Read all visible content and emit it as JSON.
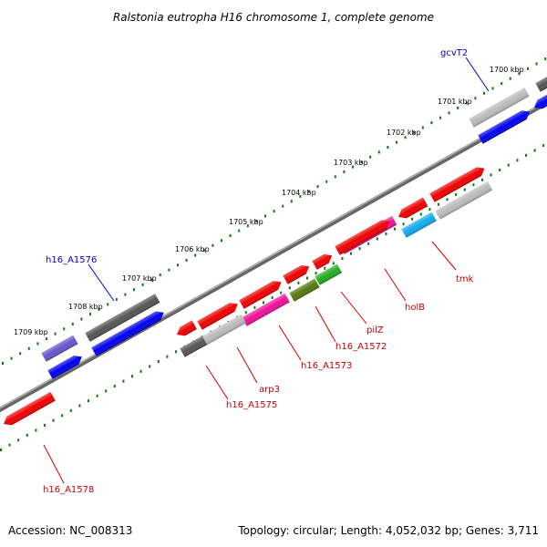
{
  "title": "Ralstonia eutropha H16 chromosome 1, complete genome",
  "accession": "Accession: NC_008313",
  "topology": "Topology: circular; Length: 4,052,032 bp; Genes: 3,711",
  "kbp_ticks": [
    "1700 kbp",
    "1701 kbp",
    "1702 kbp",
    "1703 kbp",
    "1704 kbp",
    "1705 kbp",
    "1706 kbp",
    "1707 kbp",
    "1708 kbp",
    "1709 kbp"
  ],
  "gene_labels": {
    "gcvT2": "gcvT2",
    "h16_A1576": "h16_A1576",
    "tmk": "tmk",
    "holB": "holB",
    "pilZ": "pilZ",
    "h16_A1572": "h16_A1572",
    "h16_A1573": "h16_A1573",
    "arp3": "arp3",
    "h16_A1575": "h16_A1575",
    "h16_A1578": "h16_A1578"
  },
  "colors": {
    "red": "#ee0000",
    "blue": "#0000ee",
    "gray": "#555555",
    "lightgray": "#bbbbbb",
    "magenta": "#ee1199",
    "olive": "#557711",
    "green": "#22aa22",
    "cyan": "#11aaee",
    "lavender": "#6655cc",
    "tick": "#117711",
    "backbone": "#888888"
  }
}
